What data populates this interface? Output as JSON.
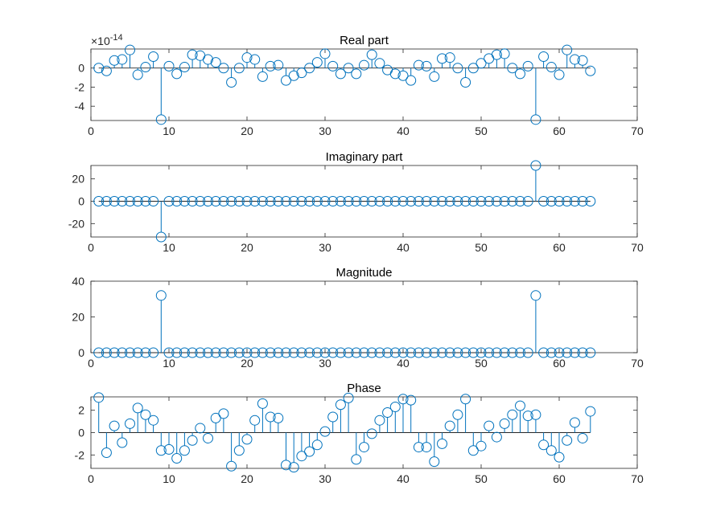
{
  "figure": {
    "stem_color": "#0072BD",
    "axis_color": "#262626"
  },
  "chart_data": [
    {
      "type": "stem",
      "title": "Real part",
      "exponent_label": "×10",
      "exponent_power": "-14",
      "xlim": [
        0,
        70
      ],
      "ylim": [
        -5.5,
        2
      ],
      "xticks": [
        0,
        10,
        20,
        30,
        40,
        50,
        60,
        70
      ],
      "yticks": [
        0,
        -2,
        -4
      ],
      "x": [
        1,
        2,
        3,
        4,
        5,
        6,
        7,
        8,
        9,
        10,
        11,
        12,
        13,
        14,
        15,
        16,
        17,
        18,
        19,
        20,
        21,
        22,
        23,
        24,
        25,
        26,
        27,
        28,
        29,
        30,
        31,
        32,
        33,
        34,
        35,
        36,
        37,
        38,
        39,
        40,
        41,
        42,
        43,
        44,
        45,
        46,
        47,
        48,
        49,
        50,
        51,
        52,
        53,
        54,
        55,
        56,
        57,
        58,
        59,
        60,
        61,
        62,
        63,
        64
      ],
      "y": [
        0.0,
        -0.3,
        0.8,
        0.9,
        1.9,
        -0.7,
        0.1,
        1.2,
        -5.4,
        0.2,
        -0.6,
        0.1,
        1.4,
        1.3,
        0.9,
        0.6,
        0.0,
        -1.5,
        0.0,
        1.1,
        0.9,
        -0.9,
        0.2,
        0.3,
        -1.3,
        -0.8,
        -0.5,
        0.0,
        0.6,
        1.5,
        0.2,
        -0.6,
        0.0,
        -0.6,
        0.3,
        1.4,
        0.5,
        -0.2,
        -0.6,
        -0.8,
        -1.3,
        0.3,
        0.2,
        -0.9,
        1.0,
        1.1,
        0.0,
        -1.5,
        0.0,
        0.5,
        1.0,
        1.4,
        1.5,
        0.0,
        -0.6,
        0.2,
        -5.4,
        1.2,
        0.1,
        -0.7,
        1.9,
        0.9,
        0.8,
        -0.3
      ]
    },
    {
      "type": "stem",
      "title": "Imaginary part",
      "xlim": [
        0,
        70
      ],
      "ylim": [
        -32,
        32
      ],
      "xticks": [
        0,
        10,
        20,
        30,
        40,
        50,
        60,
        70
      ],
      "yticks": [
        20,
        0,
        -20
      ],
      "x": [
        1,
        2,
        3,
        4,
        5,
        6,
        7,
        8,
        9,
        10,
        11,
        12,
        13,
        14,
        15,
        16,
        17,
        18,
        19,
        20,
        21,
        22,
        23,
        24,
        25,
        26,
        27,
        28,
        29,
        30,
        31,
        32,
        33,
        34,
        35,
        36,
        37,
        38,
        39,
        40,
        41,
        42,
        43,
        44,
        45,
        46,
        47,
        48,
        49,
        50,
        51,
        52,
        53,
        54,
        55,
        56,
        57,
        58,
        59,
        60,
        61,
        62,
        63,
        64
      ],
      "y": [
        0,
        0,
        0,
        0,
        0,
        0,
        0,
        0,
        -32,
        0,
        0,
        0,
        0,
        0,
        0,
        0,
        0,
        0,
        0,
        0,
        0,
        0,
        0,
        0,
        0,
        0,
        0,
        0,
        0,
        0,
        0,
        0,
        0,
        0,
        0,
        0,
        0,
        0,
        0,
        0,
        0,
        0,
        0,
        0,
        0,
        0,
        0,
        0,
        0,
        0,
        0,
        0,
        0,
        0,
        0,
        0,
        32,
        0,
        0,
        0,
        0,
        0,
        0,
        0
      ]
    },
    {
      "type": "stem",
      "title": "Magnitude",
      "xlim": [
        0,
        70
      ],
      "ylim": [
        0,
        40
      ],
      "xticks": [
        0,
        10,
        20,
        30,
        40,
        50,
        60,
        70
      ],
      "yticks": [
        40,
        20,
        0
      ],
      "x": [
        1,
        2,
        3,
        4,
        5,
        6,
        7,
        8,
        9,
        10,
        11,
        12,
        13,
        14,
        15,
        16,
        17,
        18,
        19,
        20,
        21,
        22,
        23,
        24,
        25,
        26,
        27,
        28,
        29,
        30,
        31,
        32,
        33,
        34,
        35,
        36,
        37,
        38,
        39,
        40,
        41,
        42,
        43,
        44,
        45,
        46,
        47,
        48,
        49,
        50,
        51,
        52,
        53,
        54,
        55,
        56,
        57,
        58,
        59,
        60,
        61,
        62,
        63,
        64
      ],
      "y": [
        0,
        0,
        0,
        0,
        0,
        0,
        0,
        0,
        32,
        0,
        0,
        0,
        0,
        0,
        0,
        0,
        0,
        0,
        0,
        0,
        0,
        0,
        0,
        0,
        0,
        0,
        0,
        0,
        0,
        0,
        0,
        0,
        0,
        0,
        0,
        0,
        0,
        0,
        0,
        0,
        0,
        0,
        0,
        0,
        0,
        0,
        0,
        0,
        0,
        0,
        0,
        0,
        0,
        0,
        0,
        0,
        32,
        0,
        0,
        0,
        0,
        0,
        0,
        0
      ]
    },
    {
      "type": "stem",
      "title": "Phase",
      "xlim": [
        0,
        70
      ],
      "ylim": [
        -3.2,
        3.2
      ],
      "xticks": [
        0,
        10,
        20,
        30,
        40,
        50,
        60,
        70
      ],
      "yticks": [
        2,
        0,
        -2
      ],
      "x": [
        1,
        2,
        3,
        4,
        5,
        6,
        7,
        8,
        9,
        10,
        11,
        12,
        13,
        14,
        15,
        16,
        17,
        18,
        19,
        20,
        21,
        22,
        23,
        24,
        25,
        26,
        27,
        28,
        29,
        30,
        31,
        32,
        33,
        34,
        35,
        36,
        37,
        38,
        39,
        40,
        41,
        42,
        43,
        44,
        45,
        46,
        47,
        48,
        49,
        50,
        51,
        52,
        53,
        54,
        55,
        56,
        57,
        58,
        59,
        60,
        61,
        62,
        63,
        64
      ],
      "y": [
        3.14,
        -1.8,
        0.6,
        -0.9,
        0.8,
        2.2,
        1.6,
        1.1,
        -1.6,
        -1.5,
        -2.3,
        -1.6,
        -0.7,
        0.4,
        -0.5,
        1.3,
        1.7,
        -3.0,
        -1.6,
        -0.6,
        1.1,
        2.6,
        1.4,
        1.3,
        -2.9,
        -3.1,
        -2.1,
        -1.7,
        -1.1,
        0.1,
        1.4,
        2.5,
        3.1,
        -2.4,
        -1.3,
        -0.1,
        1.1,
        1.8,
        2.3,
        3.0,
        2.9,
        -1.3,
        -1.3,
        -2.6,
        -1.0,
        0.6,
        1.6,
        3.0,
        -1.6,
        -1.2,
        0.6,
        -0.4,
        0.8,
        1.6,
        2.4,
        1.5,
        1.6,
        -1.1,
        -1.6,
        -2.2,
        -0.7,
        0.9,
        -0.5,
        1.9
      ]
    }
  ]
}
